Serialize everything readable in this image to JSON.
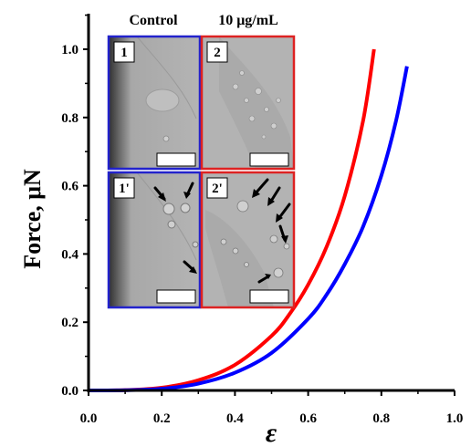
{
  "chart_data": {
    "type": "line",
    "xlabel": "ε",
    "ylabel": "Force, μN",
    "xlim": [
      0.0,
      1.0
    ],
    "ylim": [
      0.0,
      1.1
    ],
    "x_ticks": [
      "0.0",
      "0.2",
      "0.4",
      "0.6",
      "0.8",
      "1.0"
    ],
    "y_ticks": [
      "0.0",
      "0.2",
      "0.4",
      "0.6",
      "0.8",
      "1.0"
    ],
    "series": [
      {
        "color": "#ff0000",
        "x": [
          0.0,
          0.1,
          0.2,
          0.3,
          0.4,
          0.5,
          0.55,
          0.6,
          0.65,
          0.7,
          0.75,
          0.78
        ],
        "y": [
          0.0,
          0.001,
          0.008,
          0.03,
          0.075,
          0.16,
          0.225,
          0.31,
          0.42,
          0.57,
          0.79,
          1.0
        ]
      },
      {
        "color": "#0000ff",
        "x": [
          0.0,
          0.1,
          0.2,
          0.3,
          0.4,
          0.5,
          0.6,
          0.65,
          0.7,
          0.75,
          0.8,
          0.84,
          0.87
        ],
        "y": [
          0.0,
          0.0007,
          0.005,
          0.02,
          0.052,
          0.11,
          0.21,
          0.28,
          0.37,
          0.48,
          0.63,
          0.79,
          0.95
        ]
      }
    ],
    "inset": {
      "column_labels": [
        "Control",
        "10 μg/mL"
      ],
      "panels": [
        {
          "label": "1",
          "border_color": "#2222cc"
        },
        {
          "label": "2",
          "border_color": "#dd2222"
        },
        {
          "label": "1'",
          "border_color": "#2222cc"
        },
        {
          "label": "2'",
          "border_color": "#dd2222"
        }
      ]
    }
  }
}
